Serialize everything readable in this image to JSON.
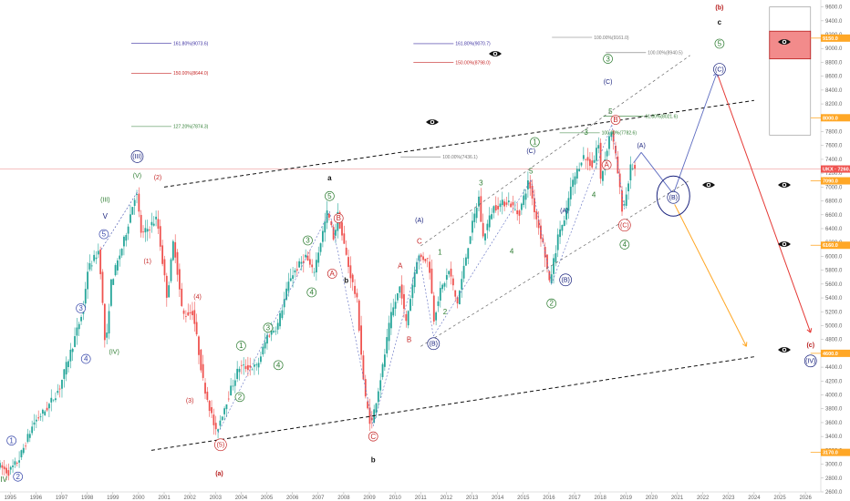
{
  "chart_data": {
    "type": "candlestick",
    "y_axis": {
      "range": [
        2600,
        9700
      ],
      "ticks": [
        "9600.0",
        "9400.0",
        "9200.0",
        "9000.0",
        "8800.0",
        "8600.0",
        "8400.0",
        "8200.0",
        "8000.0",
        "7800.0",
        "7600.0",
        "7400.0",
        "7200.0",
        "7000.0",
        "6800.0",
        "6600.0",
        "6400.0",
        "6200.0",
        "6000.0",
        "5800.0",
        "5600.0",
        "5400.0",
        "5200.0",
        "5000.0",
        "4800.0",
        "4600.0",
        "4400.0",
        "4200.0",
        "4000.0",
        "3800.0",
        "3600.0",
        "3400.0",
        "3200.0",
        "3000.0",
        "2800.0",
        "2600.0"
      ]
    },
    "x_axis": {
      "range": [
        1994.6,
        2026.6
      ],
      "ticks": [
        "1995",
        "1996",
        "1997",
        "1998",
        "1999",
        "2000",
        "2001",
        "2002",
        "2003",
        "2004",
        "2005",
        "2006",
        "2007",
        "2008",
        "2009",
        "2010",
        "2011",
        "2012",
        "2013",
        "2014",
        "2015",
        "2016",
        "2017",
        "2018",
        "2019",
        "2020",
        "2021",
        "2022",
        "2023",
        "2024",
        "2025",
        "2026"
      ]
    },
    "price_key_points": [
      [
        1994.6,
        2990
      ],
      [
        1995.0,
        2880
      ],
      [
        1995.4,
        3050
      ],
      [
        1996.0,
        3600
      ],
      [
        1996.5,
        3800
      ],
      [
        1997.0,
        4100
      ],
      [
        1997.5,
        4700
      ],
      [
        1997.9,
        5200
      ],
      [
        1998.1,
        5800
      ],
      [
        1998.55,
        6100
      ],
      [
        1998.8,
        4600
      ],
      [
        1999.0,
        5600
      ],
      [
        1999.5,
        6200
      ],
      [
        1999.99,
        6950
      ],
      [
        2000.2,
        6300
      ],
      [
        2000.8,
        6550
      ],
      [
        2001.2,
        5400
      ],
      [
        2001.45,
        6250
      ],
      [
        2001.8,
        5150
      ],
      [
        2002.2,
        5200
      ],
      [
        2002.6,
        4200
      ],
      [
        2003.1,
        3450
      ],
      [
        2003.5,
        3900
      ],
      [
        2004.0,
        4400
      ],
      [
        2004.7,
        4400
      ],
      [
        2005.1,
        4850
      ],
      [
        2005.5,
        5000
      ],
      [
        2006.0,
        5700
      ],
      [
        2006.6,
        6000
      ],
      [
        2006.9,
        5750
      ],
      [
        2007.45,
        6650
      ],
      [
        2007.7,
        6250
      ],
      [
        2007.85,
        6600
      ],
      [
        2008.3,
        5800
      ],
      [
        2008.6,
        5350
      ],
      [
        2008.9,
        4000
      ],
      [
        2009.15,
        3550
      ],
      [
        2009.6,
        4400
      ],
      [
        2009.9,
        5100
      ],
      [
        2010.3,
        5600
      ],
      [
        2010.5,
        5000
      ],
      [
        2010.95,
        6000
      ],
      [
        2011.4,
        5950
      ],
      [
        2011.6,
        5100
      ],
      [
        2011.8,
        5450
      ],
      [
        2012.2,
        5800
      ],
      [
        2012.5,
        5300
      ],
      [
        2013.0,
        6300
      ],
      [
        2013.35,
        6850
      ],
      [
        2013.5,
        6250
      ],
      [
        2013.9,
        6700
      ],
      [
        2014.5,
        6800
      ],
      [
        2014.9,
        6600
      ],
      [
        2015.3,
        7100
      ],
      [
        2015.5,
        6700
      ],
      [
        2015.9,
        6100
      ],
      [
        2016.1,
        5600
      ],
      [
        2016.5,
        6400
      ],
      [
        2016.7,
        6500
      ],
      [
        2016.9,
        6950
      ],
      [
        2017.4,
        7450
      ],
      [
        2017.8,
        7300
      ],
      [
        2018.0,
        7700
      ],
      [
        2018.1,
        7100
      ],
      [
        2018.5,
        7850
      ],
      [
        2018.7,
        7400
      ],
      [
        2018.95,
        6650
      ],
      [
        2019.1,
        6900
      ],
      [
        2019.3,
        7350
      ],
      [
        2019.4,
        7250
      ]
    ],
    "last_price": "7260.5",
    "right_axis_labels": [
      {
        "text": "9150.0",
        "value": 9150
      },
      {
        "text": "8000.0",
        "value": 8000
      },
      {
        "text": "UKX · 7260.5",
        "value": 7260.5
      },
      {
        "text": "7090.0",
        "value": 7090
      },
      {
        "text": "6160.0",
        "value": 6160
      },
      {
        "text": "4600.0",
        "value": 4600
      },
      {
        "text": "3170.0",
        "value": 3170
      }
    ],
    "fib_labels": [
      {
        "text": "161.80%(9073.6)",
        "x": 2000.5,
        "y": 9073,
        "color": "#3b2fa0"
      },
      {
        "text": "161.80%(9070.7)",
        "x": 2011.5,
        "y": 9070,
        "color": "#3b2fa0"
      },
      {
        "text": "100.00%(9161.0)",
        "x": 2016.9,
        "y": 9161,
        "color": "#777777"
      },
      {
        "text": "100.00%(8940.5)",
        "x": 2019.0,
        "y": 8940,
        "color": "#777777"
      },
      {
        "text": "150.00%(8798.0)",
        "x": 2011.5,
        "y": 8798,
        "color": "#c62828"
      },
      {
        "text": "150.00%(8644.0)",
        "x": 2000.5,
        "y": 8644,
        "color": "#c62828"
      },
      {
        "text": "127.20%(7874.3)",
        "x": 2000.5,
        "y": 7874,
        "color": "#2e7d32"
      },
      {
        "text": "100.00%(7436.1)",
        "x": 2011.0,
        "y": 7436,
        "color": "#777777"
      },
      {
        "text": "100.00%(7782.6)",
        "x": 2017.2,
        "y": 7782,
        "color": "#2e7d32"
      },
      {
        "text": "61.80%(8021.6)",
        "x": 2018.9,
        "y": 8021,
        "color": "#2e7d32"
      }
    ],
    "wave_labels": [
      {
        "text": "IV",
        "x": 1994.75,
        "y": 2780,
        "style": "plain-green"
      },
      {
        "text": "2",
        "x": 1995.3,
        "y": 2820,
        "style": "circle-blue"
      },
      {
        "text": "1",
        "x": 1995.05,
        "y": 3340,
        "style": "circle-blue"
      },
      {
        "text": "3",
        "x": 1997.75,
        "y": 5250,
        "style": "circle-blue"
      },
      {
        "text": "4",
        "x": 1997.95,
        "y": 4520,
        "style": "circle-blue"
      },
      {
        "text": "5",
        "x": 1998.65,
        "y": 6320,
        "style": "circle-blue"
      },
      {
        "text": "(III)",
        "x": 1998.7,
        "y": 6820,
        "style": "plain-green"
      },
      {
        "text": "V",
        "x": 1998.7,
        "y": 6580,
        "style": "plain-navy"
      },
      {
        "text": "(IV)",
        "x": 1999.05,
        "y": 4620,
        "style": "plain-green"
      },
      {
        "text": "(V)",
        "x": 1999.95,
        "y": 7170,
        "style": "plain-green"
      },
      {
        "text": "(III)",
        "x": 1999.95,
        "y": 7440,
        "style": "circle-navy"
      },
      {
        "text": "(2)",
        "x": 2000.75,
        "y": 7140,
        "style": "plain-red"
      },
      {
        "text": "(1)",
        "x": 2000.35,
        "y": 5930,
        "style": "plain-red"
      },
      {
        "text": "(4)",
        "x": 2002.3,
        "y": 5420,
        "style": "plain-red"
      },
      {
        "text": "(3)",
        "x": 2002.0,
        "y": 3920,
        "style": "plain-red"
      },
      {
        "text": "(5)",
        "x": 2003.2,
        "y": 3280,
        "style": "circle-red"
      },
      {
        "text": "(a)",
        "x": 2003.15,
        "y": 2870,
        "style": "plain-darkred"
      },
      {
        "text": "1",
        "x": 2004.0,
        "y": 4710,
        "style": "circle-green"
      },
      {
        "text": "2",
        "x": 2003.95,
        "y": 3970,
        "style": "circle-green"
      },
      {
        "text": "3",
        "x": 2005.05,
        "y": 4970,
        "style": "circle-green"
      },
      {
        "text": "4",
        "x": 2005.45,
        "y": 4430,
        "style": "circle-green"
      },
      {
        "text": "3",
        "x": 2006.6,
        "y": 6230,
        "style": "circle-green"
      },
      {
        "text": "4",
        "x": 2006.75,
        "y": 5480,
        "style": "circle-green"
      },
      {
        "text": "5",
        "x": 2007.45,
        "y": 6870,
        "style": "circle-green"
      },
      {
        "text": "a",
        "x": 2007.45,
        "y": 7130,
        "style": "plain-black"
      },
      {
        "text": "B",
        "x": 2007.8,
        "y": 6550,
        "style": "circle-red"
      },
      {
        "text": "A",
        "x": 2007.55,
        "y": 5750,
        "style": "circle-red"
      },
      {
        "text": "b",
        "x": 2008.1,
        "y": 5650,
        "style": "plain-black"
      },
      {
        "text": "C",
        "x": 2009.15,
        "y": 3400,
        "style": "circle-red"
      },
      {
        "text": "b",
        "x": 2009.15,
        "y": 3060,
        "style": "plain-black"
      },
      {
        "text": "A",
        "x": 2010.2,
        "y": 5860,
        "style": "plain-red"
      },
      {
        "text": "B",
        "x": 2010.55,
        "y": 4800,
        "style": "plain-red"
      },
      {
        "text": "C",
        "x": 2010.95,
        "y": 6220,
        "style": "plain-red"
      },
      {
        "text": "(A)",
        "x": 2010.95,
        "y": 6520,
        "style": "plain-navy"
      },
      {
        "text": "(B)",
        "x": 2011.5,
        "y": 4740,
        "style": "circle-navy"
      },
      {
        "text": "1",
        "x": 2011.75,
        "y": 6060,
        "style": "plain-green"
      },
      {
        "text": "2",
        "x": 2011.95,
        "y": 5200,
        "style": "plain-green"
      },
      {
        "text": "3",
        "x": 2013.35,
        "y": 7060,
        "style": "plain-green"
      },
      {
        "text": "4",
        "x": 2014.55,
        "y": 6070,
        "style": "plain-green"
      },
      {
        "text": "5",
        "x": 2015.3,
        "y": 7230,
        "style": "plain-green"
      },
      {
        "text": "(C)",
        "x": 2015.3,
        "y": 7520,
        "style": "plain-navy"
      },
      {
        "text": "1",
        "x": 2015.45,
        "y": 7650,
        "style": "circle-green"
      },
      {
        "text": "2",
        "x": 2016.1,
        "y": 5320,
        "style": "circle-green"
      },
      {
        "text": "(A)",
        "x": 2016.6,
        "y": 6660,
        "style": "plain-navy"
      },
      {
        "text": "(B)",
        "x": 2016.65,
        "y": 5660,
        "style": "circle-navy"
      },
      {
        "text": "3",
        "x": 2017.45,
        "y": 7790,
        "style": "plain-green"
      },
      {
        "text": "4",
        "x": 2017.75,
        "y": 6890,
        "style": "plain-green"
      },
      {
        "text": "5",
        "x": 2018.4,
        "y": 8090,
        "style": "plain-green"
      },
      {
        "text": "3",
        "x": 2018.3,
        "y": 8850,
        "style": "circle-green"
      },
      {
        "text": "(C)",
        "x": 2018.3,
        "y": 8520,
        "style": "plain-navy"
      },
      {
        "text": "B",
        "x": 2018.6,
        "y": 7970,
        "style": "circle-red"
      },
      {
        "text": "A",
        "x": 2018.25,
        "y": 7320,
        "style": "circle-red"
      },
      {
        "text": "(C)",
        "x": 2018.95,
        "y": 6450,
        "style": "circle-red"
      },
      {
        "text": "4",
        "x": 2018.95,
        "y": 6170,
        "style": "circle-green"
      },
      {
        "text": "(A)",
        "x": 2019.6,
        "y": 7600,
        "style": "plain-navy"
      },
      {
        "text": "(B)",
        "x": 2020.85,
        "y": 6850,
        "style": "circle-navy"
      },
      {
        "text": "(C)",
        "x": 2022.65,
        "y": 8700,
        "style": "circle-navy"
      },
      {
        "text": "5",
        "x": 2022.65,
        "y": 9070,
        "style": "circle-green"
      },
      {
        "text": "c",
        "x": 2022.65,
        "y": 9380,
        "style": "plain-black"
      },
      {
        "text": "(b)",
        "x": 2022.65,
        "y": 9590,
        "style": "plain-darkred"
      },
      {
        "text": "(c)",
        "x": 2026.2,
        "y": 4720,
        "style": "plain-darkred"
      },
      {
        "text": "(IV)",
        "x": 2026.2,
        "y": 4490,
        "style": "circle-navy"
      }
    ]
  }
}
